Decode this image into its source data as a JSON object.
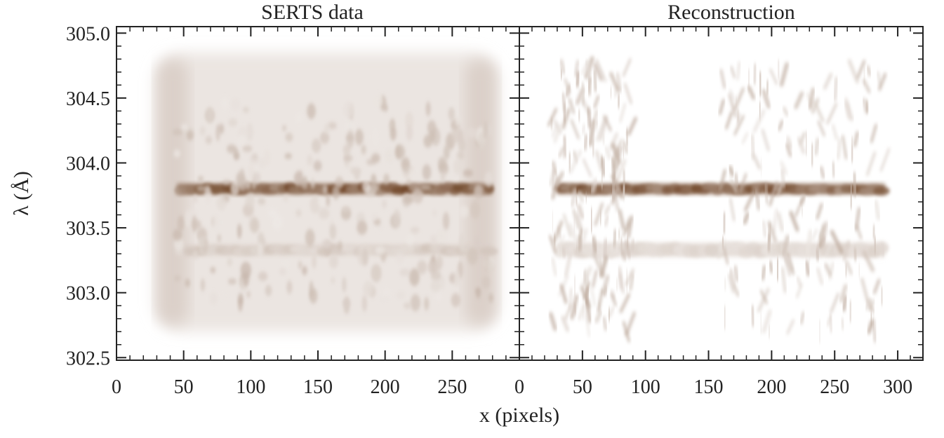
{
  "chart_data": [
    {
      "type": "heatmap",
      "title": "SERTS data",
      "xlabel": "",
      "ylabel": "λ (Å)",
      "xlim": [
        0,
        300
      ],
      "ylim": [
        302.48,
        305.05
      ],
      "x_ticks": [
        "0",
        "50",
        "100",
        "150",
        "200",
        "250"
      ],
      "x_tick_values": [
        0,
        50,
        100,
        150,
        200,
        250
      ],
      "y_ticks": [
        "305.0",
        "304.5",
        "304.0",
        "303.5",
        "303.0",
        "302.5"
      ],
      "y_tick_values": [
        305.0,
        304.5,
        304.0,
        303.5,
        303.0,
        302.5
      ],
      "colormap": [
        "#ffffff",
        "#5a2a08"
      ],
      "features": [
        {
          "kind": "envelope",
          "x": [
            28,
            285
          ],
          "y": [
            302.7,
            304.85
          ],
          "intensity": 0.12
        },
        {
          "kind": "line",
          "x": [
            45,
            280
          ],
          "center": 303.8,
          "width": 0.07,
          "intensity": 0.9
        },
        {
          "kind": "line",
          "x": [
            45,
            280
          ],
          "center": 303.33,
          "width": 0.07,
          "intensity": 0.28
        },
        {
          "kind": "speckle",
          "x": [
            45,
            280
          ],
          "y": [
            302.9,
            304.5
          ],
          "intensity": 0.25
        }
      ]
    },
    {
      "type": "heatmap",
      "title": "Reconstruction",
      "xlabel": "x (pixels)",
      "ylabel": "",
      "xlim": [
        0,
        320
      ],
      "ylim": [
        302.48,
        305.05
      ],
      "x_ticks": [
        "0",
        "50",
        "100",
        "150",
        "200",
        "250",
        "300"
      ],
      "x_tick_values": [
        0,
        50,
        100,
        150,
        200,
        250,
        300
      ],
      "y_ticks": [],
      "y_tick_values": [
        305.0,
        304.5,
        304.0,
        303.5,
        303.0,
        302.5
      ],
      "colormap": [
        "#ffffff",
        "#5a2a08"
      ],
      "features": [
        {
          "kind": "line",
          "x": [
            30,
            290
          ],
          "center": 303.8,
          "width": 0.07,
          "intensity": 0.88
        },
        {
          "kind": "line",
          "x": [
            30,
            290
          ],
          "center": 303.33,
          "width": 0.1,
          "intensity": 0.22
        },
        {
          "kind": "streaks",
          "x": [
            25,
            90
          ],
          "y": [
            302.7,
            304.75
          ],
          "intensity": 0.3
        },
        {
          "kind": "streaks",
          "x": [
            160,
            290
          ],
          "y": [
            302.7,
            304.75
          ],
          "intensity": 0.3
        }
      ]
    }
  ]
}
